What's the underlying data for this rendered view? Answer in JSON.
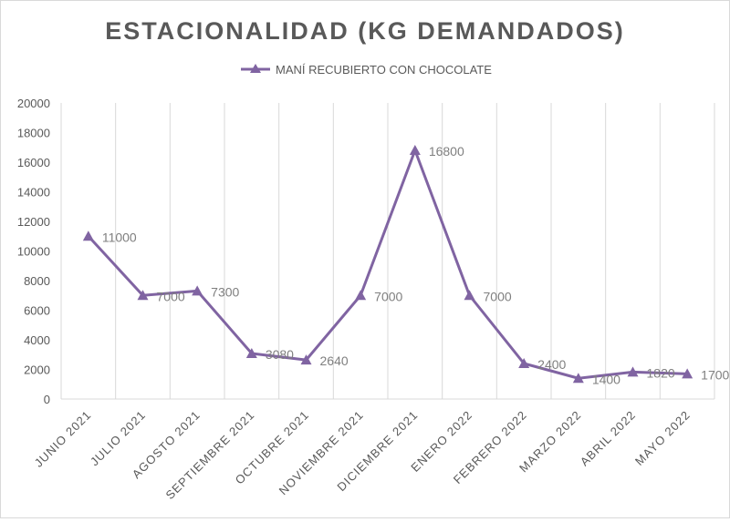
{
  "chart_data": {
    "type": "line",
    "title": "ESTACIONALIDAD (KG DEMANDADOS)",
    "categories": [
      "JUNIO 2021",
      "JULIO 2021",
      "AGOSTO 2021",
      "SEPTIEMBRE 2021",
      "OCTUBRE 2021",
      "NOVIEMBRE 2021",
      "DICIEMBRE 2021",
      "ENERO 2022",
      "FEBRERO 2022",
      "MARZO 2022",
      "ABRIL 2022",
      "MAYO 2022"
    ],
    "series": [
      {
        "name": "MANÍ RECUBIERTO CON CHOCOLATE",
        "values": [
          11000,
          7000,
          7300,
          3080,
          2640,
          7000,
          16800,
          7000,
          2400,
          1400,
          1820,
          1700
        ],
        "data_labels": [
          "11000",
          "7000",
          "7300",
          "3080",
          "2640",
          "7000",
          "16800",
          "7000",
          "2400",
          "1400",
          "1820",
          "1700"
        ],
        "color": "#8064a2",
        "marker": "triangle"
      }
    ],
    "ylim": [
      0,
      20000
    ],
    "yticks": [
      "0",
      "2000",
      "4000",
      "6000",
      "8000",
      "10000",
      "12000",
      "14000",
      "16000",
      "18000",
      "20000"
    ],
    "grid": "vertical",
    "legend": "top"
  }
}
